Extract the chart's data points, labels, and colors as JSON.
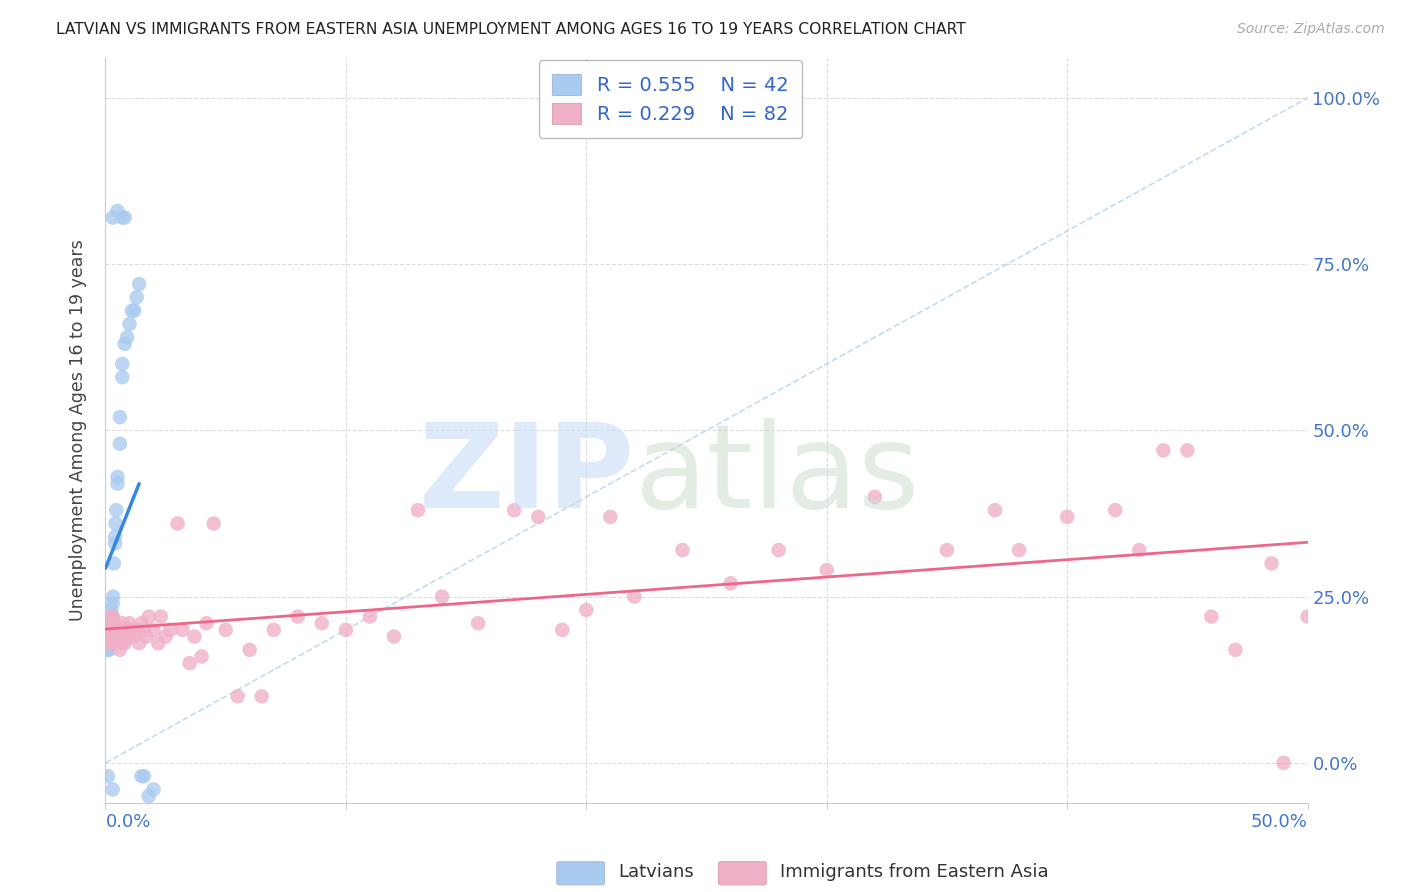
{
  "title": "LATVIAN VS IMMIGRANTS FROM EASTERN ASIA UNEMPLOYMENT AMONG AGES 16 TO 19 YEARS CORRELATION CHART",
  "source": "Source: ZipAtlas.com",
  "ylabel": "Unemployment Among Ages 16 to 19 years",
  "right_ytick_labels": [
    "0.0%",
    "25.0%",
    "50.0%",
    "75.0%",
    "100.0%"
  ],
  "right_ytick_values": [
    0.0,
    0.25,
    0.5,
    0.75,
    1.0
  ],
  "xlim": [
    0,
    0.5
  ],
  "ylim": [
    -0.06,
    1.06
  ],
  "legend_latvians_R": "0.555",
  "legend_latvians_N": "42",
  "legend_immigrants_R": "0.229",
  "legend_immigrants_N": "82",
  "latvians_color": "#aacbf0",
  "immigrants_color": "#f0b0c8",
  "latvians_line_color": "#3388dd",
  "immigrants_line_color": "#ee6688",
  "diag_line_color": "#aaccee",
  "grid_color": "#dddddd",
  "legend_text_color": "#3366cc",
  "title_color": "#222222",
  "source_color": "#aaaaaa",
  "axis_right_color": "#4477cc",
  "axis_bottom_color": "#4477cc",
  "lx": [
    0.0008,
    0.0009,
    0.001,
    0.001,
    0.0012,
    0.0012,
    0.0013,
    0.0014,
    0.0015,
    0.0016,
    0.0017,
    0.0018,
    0.002,
    0.002,
    0.002,
    0.0022,
    0.0023,
    0.0024,
    0.0025,
    0.003,
    0.003,
    0.0032,
    0.0035,
    0.004,
    0.004,
    0.0042,
    0.0045,
    0.005,
    0.005,
    0.006,
    0.006,
    0.007,
    0.007,
    0.008,
    0.009,
    0.01,
    0.011,
    0.012,
    0.013,
    0.014,
    0.016,
    0.02
  ],
  "ly": [
    0.18,
    0.17,
    0.19,
    0.2,
    0.2,
    0.21,
    0.19,
    0.2,
    0.17,
    0.21,
    0.2,
    0.21,
    0.2,
    0.21,
    0.22,
    0.22,
    0.2,
    0.21,
    0.23,
    0.22,
    0.24,
    0.25,
    0.3,
    0.33,
    0.34,
    0.36,
    0.38,
    0.42,
    0.43,
    0.48,
    0.52,
    0.58,
    0.6,
    0.63,
    0.64,
    0.66,
    0.68,
    0.68,
    0.7,
    0.72,
    -0.02,
    -0.04
  ],
  "ix": [
    0.001,
    0.001,
    0.001,
    0.0015,
    0.002,
    0.002,
    0.002,
    0.0025,
    0.003,
    0.003,
    0.003,
    0.003,
    0.004,
    0.004,
    0.005,
    0.005,
    0.006,
    0.006,
    0.007,
    0.007,
    0.008,
    0.008,
    0.009,
    0.01,
    0.01,
    0.011,
    0.012,
    0.013,
    0.014,
    0.015,
    0.016,
    0.017,
    0.018,
    0.02,
    0.022,
    0.023,
    0.025,
    0.027,
    0.03,
    0.032,
    0.035,
    0.037,
    0.04,
    0.042,
    0.045,
    0.05,
    0.055,
    0.06,
    0.065,
    0.07,
    0.08,
    0.09,
    0.1,
    0.11,
    0.12,
    0.13,
    0.14,
    0.155,
    0.17,
    0.18,
    0.19,
    0.2,
    0.21,
    0.22,
    0.24,
    0.26,
    0.28,
    0.3,
    0.32,
    0.35,
    0.37,
    0.38,
    0.4,
    0.42,
    0.43,
    0.44,
    0.45,
    0.46,
    0.47,
    0.485,
    0.49,
    0.5
  ],
  "iy": [
    0.2,
    0.21,
    0.19,
    0.2,
    0.18,
    0.2,
    0.22,
    0.19,
    0.18,
    0.2,
    0.21,
    0.22,
    0.19,
    0.21,
    0.19,
    0.2,
    0.17,
    0.2,
    0.18,
    0.21,
    0.18,
    0.2,
    0.19,
    0.19,
    0.21,
    0.2,
    0.19,
    0.2,
    0.18,
    0.21,
    0.2,
    0.19,
    0.22,
    0.2,
    0.18,
    0.22,
    0.19,
    0.2,
    0.36,
    0.2,
    0.15,
    0.19,
    0.16,
    0.21,
    0.36,
    0.2,
    0.1,
    0.17,
    0.1,
    0.2,
    0.22,
    0.21,
    0.2,
    0.22,
    0.19,
    0.38,
    0.25,
    0.21,
    0.38,
    0.37,
    0.2,
    0.23,
    0.37,
    0.25,
    0.32,
    0.27,
    0.32,
    0.29,
    0.4,
    0.32,
    0.38,
    0.32,
    0.37,
    0.38,
    0.32,
    0.47,
    0.47,
    0.22,
    0.17,
    0.3,
    0.0,
    0.22
  ]
}
